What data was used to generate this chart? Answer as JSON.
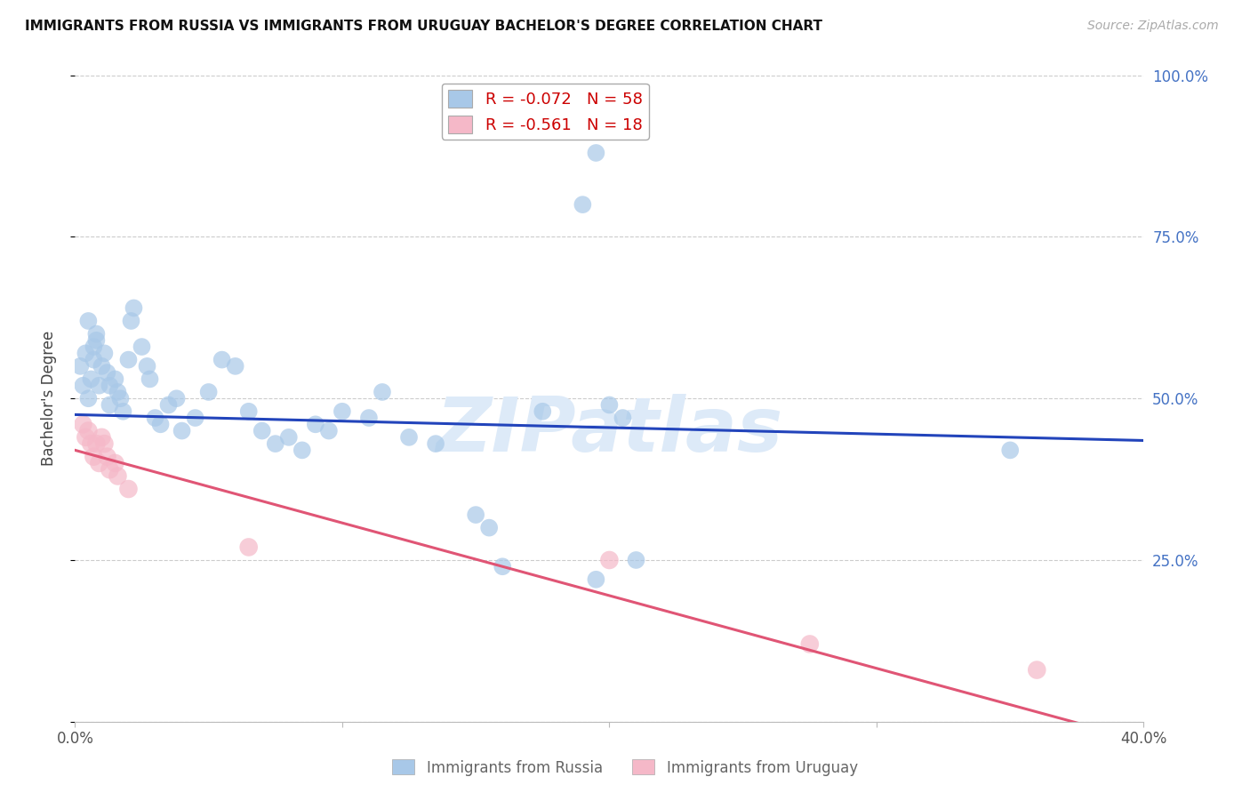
{
  "title": "IMMIGRANTS FROM RUSSIA VS IMMIGRANTS FROM URUGUAY BACHELOR'S DEGREE CORRELATION CHART",
  "source_text": "Source: ZipAtlas.com",
  "ylabel": "Bachelor's Degree",
  "xlim": [
    0.0,
    0.4
  ],
  "ylim": [
    0.0,
    1.0
  ],
  "ytick_vals": [
    0.0,
    0.25,
    0.5,
    0.75,
    1.0
  ],
  "xtick_vals": [
    0.0,
    0.1,
    0.2,
    0.3,
    0.4
  ],
  "russia_color": "#a8c8e8",
  "uruguay_color": "#f5b8c8",
  "russia_line_color": "#2244bb",
  "uruguay_line_color": "#e05575",
  "russia_R": -0.072,
  "russia_N": 58,
  "uruguay_R": -0.561,
  "uruguay_N": 18,
  "right_axis_color": "#4472c4",
  "legend_label_color": "#cc0000",
  "russia_x": [
    0.002,
    0.003,
    0.004,
    0.005,
    0.005,
    0.006,
    0.007,
    0.007,
    0.008,
    0.008,
    0.009,
    0.01,
    0.011,
    0.012,
    0.013,
    0.013,
    0.015,
    0.016,
    0.017,
    0.018,
    0.02,
    0.021,
    0.022,
    0.025,
    0.027,
    0.028,
    0.03,
    0.032,
    0.035,
    0.038,
    0.04,
    0.045,
    0.05,
    0.055,
    0.06,
    0.065,
    0.07,
    0.075,
    0.08,
    0.085,
    0.09,
    0.095,
    0.1,
    0.11,
    0.115,
    0.125,
    0.135,
    0.15,
    0.155,
    0.16,
    0.175,
    0.195,
    0.2,
    0.205,
    0.21,
    0.35,
    0.19,
    0.195
  ],
  "russia_y": [
    0.55,
    0.52,
    0.57,
    0.62,
    0.5,
    0.53,
    0.58,
    0.56,
    0.59,
    0.6,
    0.52,
    0.55,
    0.57,
    0.54,
    0.52,
    0.49,
    0.53,
    0.51,
    0.5,
    0.48,
    0.56,
    0.62,
    0.64,
    0.58,
    0.55,
    0.53,
    0.47,
    0.46,
    0.49,
    0.5,
    0.45,
    0.47,
    0.51,
    0.56,
    0.55,
    0.48,
    0.45,
    0.43,
    0.44,
    0.42,
    0.46,
    0.45,
    0.48,
    0.47,
    0.51,
    0.44,
    0.43,
    0.32,
    0.3,
    0.24,
    0.48,
    0.22,
    0.49,
    0.47,
    0.25,
    0.42,
    0.8,
    0.88
  ],
  "uruguay_x": [
    0.003,
    0.004,
    0.005,
    0.006,
    0.007,
    0.008,
    0.009,
    0.01,
    0.011,
    0.012,
    0.013,
    0.015,
    0.016,
    0.02,
    0.065,
    0.2,
    0.275,
    0.36
  ],
  "uruguay_y": [
    0.46,
    0.44,
    0.45,
    0.43,
    0.41,
    0.43,
    0.4,
    0.44,
    0.43,
    0.41,
    0.39,
    0.4,
    0.38,
    0.36,
    0.27,
    0.25,
    0.12,
    0.08
  ]
}
